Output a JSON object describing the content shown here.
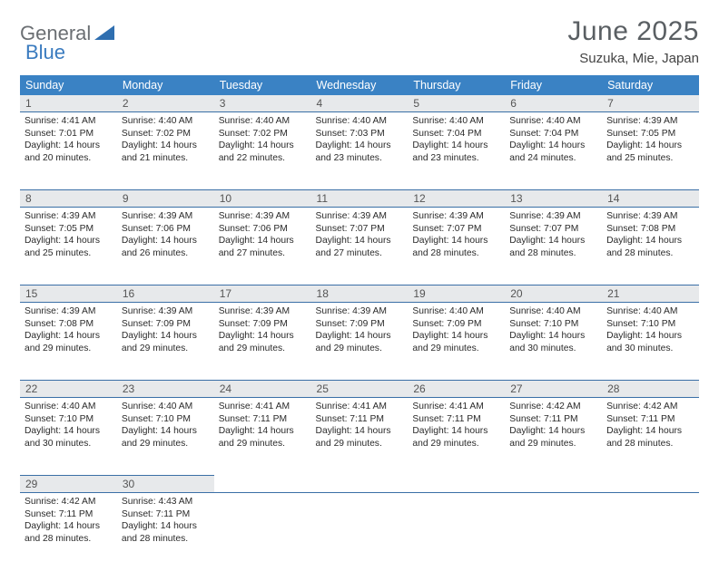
{
  "logo": {
    "part1": "General",
    "part2": "Blue"
  },
  "title": "June 2025",
  "location": "Suzuka, Mie, Japan",
  "colors": {
    "header_bg": "#3a82c4",
    "header_text": "#ffffff",
    "row_sep": "#3a6fa6",
    "daynum_bg": "#e7e9eb",
    "logo_gray": "#6b6f73",
    "logo_blue": "#3a7bbf",
    "title_color": "#5a5f63"
  },
  "weekdays": [
    "Sunday",
    "Monday",
    "Tuesday",
    "Wednesday",
    "Thursday",
    "Friday",
    "Saturday"
  ],
  "days": [
    {
      "n": "1",
      "sr": "4:41 AM",
      "ss": "7:01 PM",
      "dl": "14 hours and 20 minutes."
    },
    {
      "n": "2",
      "sr": "4:40 AM",
      "ss": "7:02 PM",
      "dl": "14 hours and 21 minutes."
    },
    {
      "n": "3",
      "sr": "4:40 AM",
      "ss": "7:02 PM",
      "dl": "14 hours and 22 minutes."
    },
    {
      "n": "4",
      "sr": "4:40 AM",
      "ss": "7:03 PM",
      "dl": "14 hours and 23 minutes."
    },
    {
      "n": "5",
      "sr": "4:40 AM",
      "ss": "7:04 PM",
      "dl": "14 hours and 23 minutes."
    },
    {
      "n": "6",
      "sr": "4:40 AM",
      "ss": "7:04 PM",
      "dl": "14 hours and 24 minutes."
    },
    {
      "n": "7",
      "sr": "4:39 AM",
      "ss": "7:05 PM",
      "dl": "14 hours and 25 minutes."
    },
    {
      "n": "8",
      "sr": "4:39 AM",
      "ss": "7:05 PM",
      "dl": "14 hours and 25 minutes."
    },
    {
      "n": "9",
      "sr": "4:39 AM",
      "ss": "7:06 PM",
      "dl": "14 hours and 26 minutes."
    },
    {
      "n": "10",
      "sr": "4:39 AM",
      "ss": "7:06 PM",
      "dl": "14 hours and 27 minutes."
    },
    {
      "n": "11",
      "sr": "4:39 AM",
      "ss": "7:07 PM",
      "dl": "14 hours and 27 minutes."
    },
    {
      "n": "12",
      "sr": "4:39 AM",
      "ss": "7:07 PM",
      "dl": "14 hours and 28 minutes."
    },
    {
      "n": "13",
      "sr": "4:39 AM",
      "ss": "7:07 PM",
      "dl": "14 hours and 28 minutes."
    },
    {
      "n": "14",
      "sr": "4:39 AM",
      "ss": "7:08 PM",
      "dl": "14 hours and 28 minutes."
    },
    {
      "n": "15",
      "sr": "4:39 AM",
      "ss": "7:08 PM",
      "dl": "14 hours and 29 minutes."
    },
    {
      "n": "16",
      "sr": "4:39 AM",
      "ss": "7:09 PM",
      "dl": "14 hours and 29 minutes."
    },
    {
      "n": "17",
      "sr": "4:39 AM",
      "ss": "7:09 PM",
      "dl": "14 hours and 29 minutes."
    },
    {
      "n": "18",
      "sr": "4:39 AM",
      "ss": "7:09 PM",
      "dl": "14 hours and 29 minutes."
    },
    {
      "n": "19",
      "sr": "4:40 AM",
      "ss": "7:09 PM",
      "dl": "14 hours and 29 minutes."
    },
    {
      "n": "20",
      "sr": "4:40 AM",
      "ss": "7:10 PM",
      "dl": "14 hours and 30 minutes."
    },
    {
      "n": "21",
      "sr": "4:40 AM",
      "ss": "7:10 PM",
      "dl": "14 hours and 30 minutes."
    },
    {
      "n": "22",
      "sr": "4:40 AM",
      "ss": "7:10 PM",
      "dl": "14 hours and 30 minutes."
    },
    {
      "n": "23",
      "sr": "4:40 AM",
      "ss": "7:10 PM",
      "dl": "14 hours and 29 minutes."
    },
    {
      "n": "24",
      "sr": "4:41 AM",
      "ss": "7:11 PM",
      "dl": "14 hours and 29 minutes."
    },
    {
      "n": "25",
      "sr": "4:41 AM",
      "ss": "7:11 PM",
      "dl": "14 hours and 29 minutes."
    },
    {
      "n": "26",
      "sr": "4:41 AM",
      "ss": "7:11 PM",
      "dl": "14 hours and 29 minutes."
    },
    {
      "n": "27",
      "sr": "4:42 AM",
      "ss": "7:11 PM",
      "dl": "14 hours and 29 minutes."
    },
    {
      "n": "28",
      "sr": "4:42 AM",
      "ss": "7:11 PM",
      "dl": "14 hours and 28 minutes."
    },
    {
      "n": "29",
      "sr": "4:42 AM",
      "ss": "7:11 PM",
      "dl": "14 hours and 28 minutes."
    },
    {
      "n": "30",
      "sr": "4:43 AM",
      "ss": "7:11 PM",
      "dl": "14 hours and 28 minutes."
    }
  ],
  "labels": {
    "sunrise": "Sunrise:",
    "sunset": "Sunset:",
    "daylight": "Daylight:"
  }
}
